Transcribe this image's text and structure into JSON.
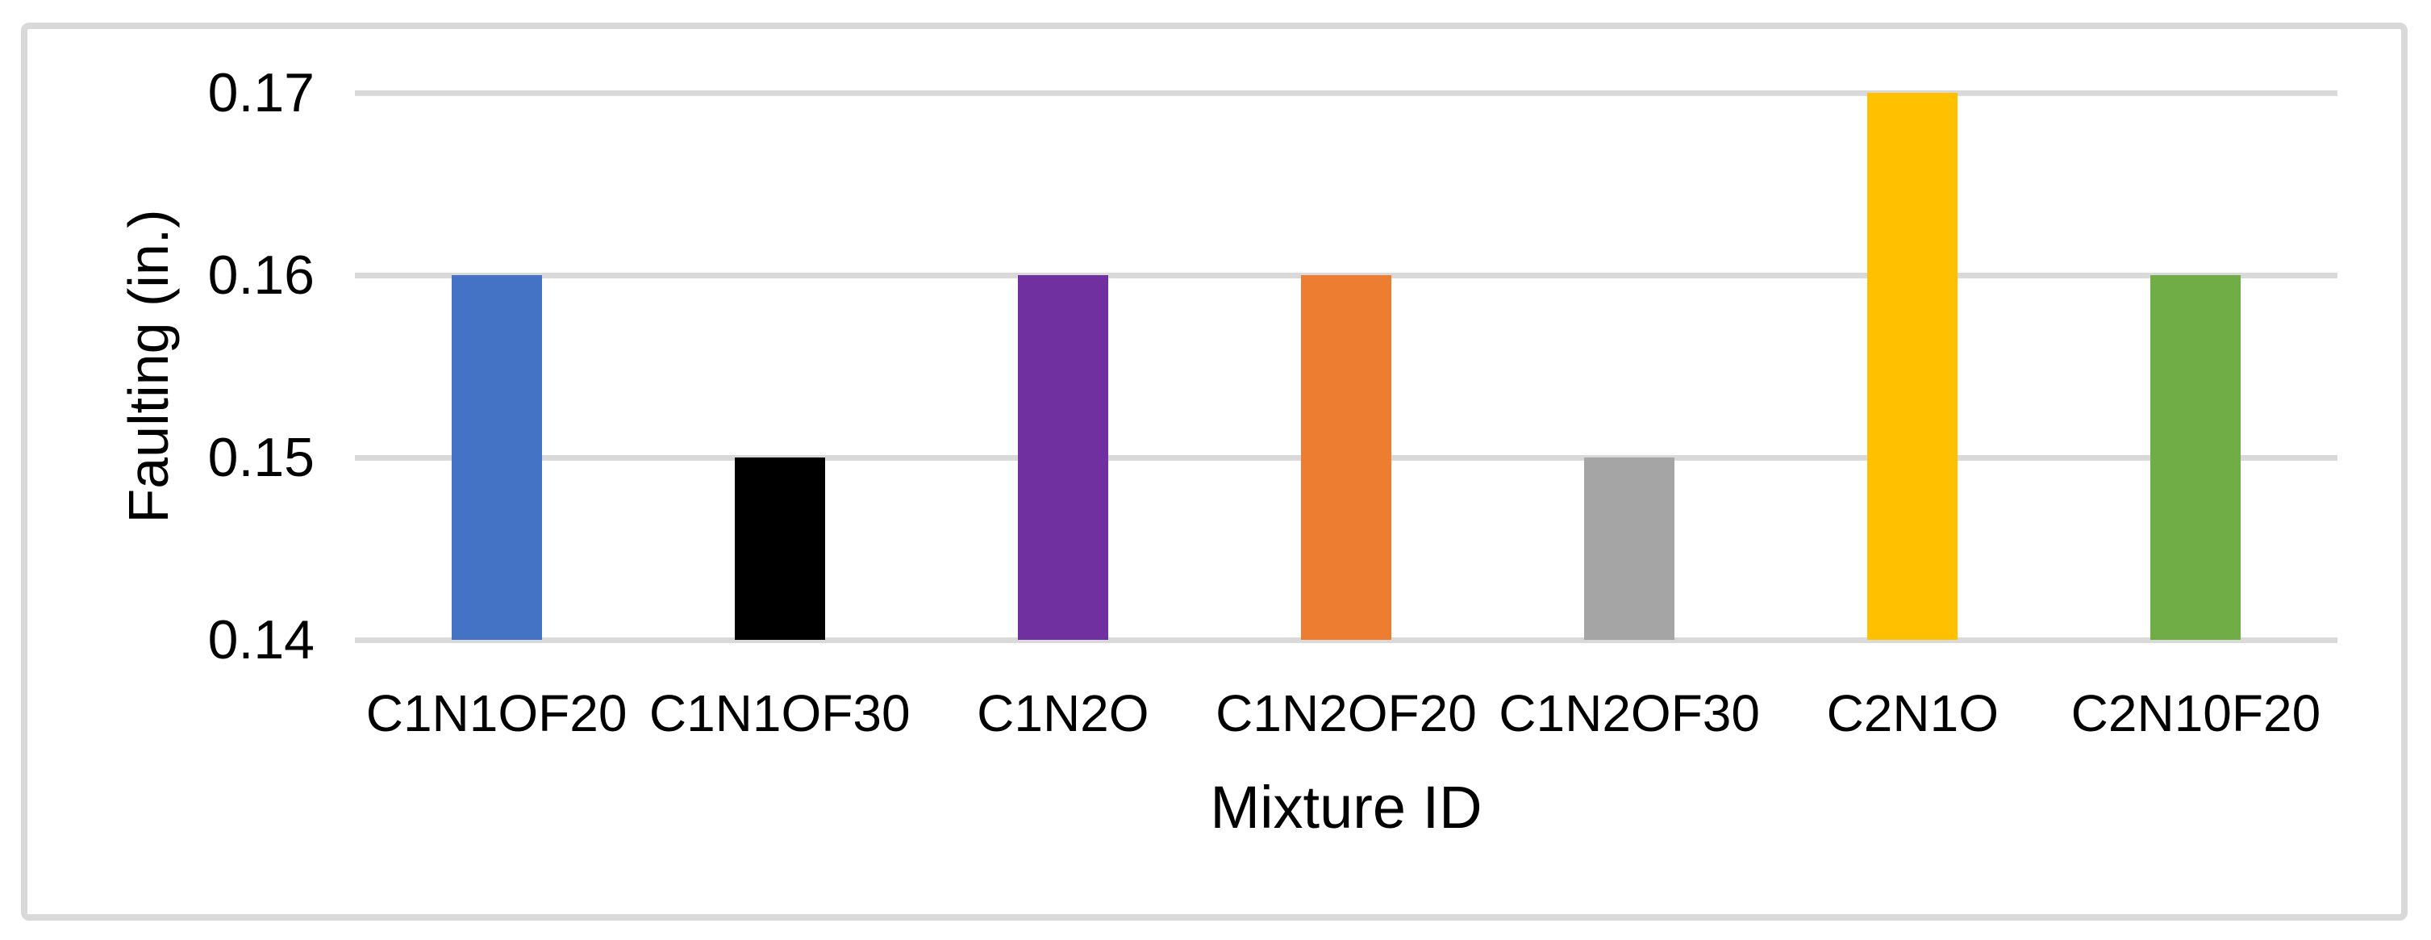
{
  "page": {
    "background": "#FFFFFF"
  },
  "chart_data": {
    "type": "bar",
    "title": "",
    "categories": [
      "C1N1OF20",
      "C1N1OF30",
      "C1N2O",
      "C1N2OF20",
      "C1N2OF30",
      "C2N1O",
      "C2N10F20"
    ],
    "values": [
      0.16,
      0.15,
      0.16,
      0.16,
      0.15,
      0.17,
      0.16
    ],
    "bar_colors": [
      "#4472C4",
      "#000000",
      "#7030A0",
      "#ED7D31",
      "#A5A5A5",
      "#FFC000",
      "#70AD47"
    ],
    "xlabel": "Mixture ID",
    "ylabel": "Faulting (in.)",
    "ylim": [
      0.14,
      0.17
    ],
    "yticks": [
      0.14,
      0.15,
      0.16,
      0.17
    ],
    "ytick_labels": [
      "0.14",
      "0.15",
      "0.16",
      "0.17"
    ],
    "grid": true,
    "legend": "none",
    "gridline_color": "#D9D9D9",
    "frame_border_color": "#D9D9D9",
    "text_color": "#000000"
  }
}
